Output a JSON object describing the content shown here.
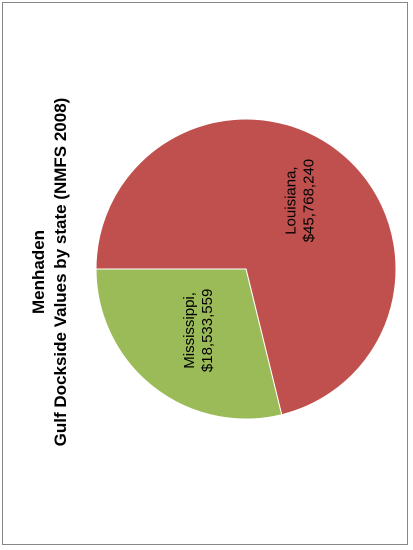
{
  "chart_data": {
    "type": "pie",
    "title_lines": [
      "Menhaden",
      "Gulf Dockside Values by state (NMFS 2008)"
    ],
    "slices": [
      {
        "name": "Louisiana",
        "value": 45768240,
        "label_lines": [
          "Louisiana,",
          "$45,768,240"
        ],
        "color": "#c0504d"
      },
      {
        "name": "Mississippi",
        "value": 18533559,
        "label_lines": [
          "Mississippi,",
          "$18,533,559"
        ],
        "color": "#9bbb59"
      }
    ],
    "orientation": "rotated-90-ccw",
    "legend": "none"
  }
}
